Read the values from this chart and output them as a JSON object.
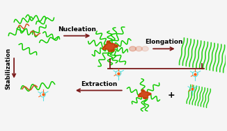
{
  "background": "#f5f5f5",
  "arrow_color": "#7B1A1A",
  "nucleation_label": "Nucleation",
  "elongation_label": "Elongation",
  "stabilization_label": "Stabilization",
  "extraction_label": "Extraction",
  "label_fontsize": 6.5,
  "label_fontweight": "bold",
  "fibril_color": "#11CC00",
  "peptide_color": "#11CC00",
  "nucleus_color": "#CC3300",
  "drug_color_main": "#44DDDD",
  "drug_color_accent": "#FF5500",
  "arrow_lw": 1.3
}
